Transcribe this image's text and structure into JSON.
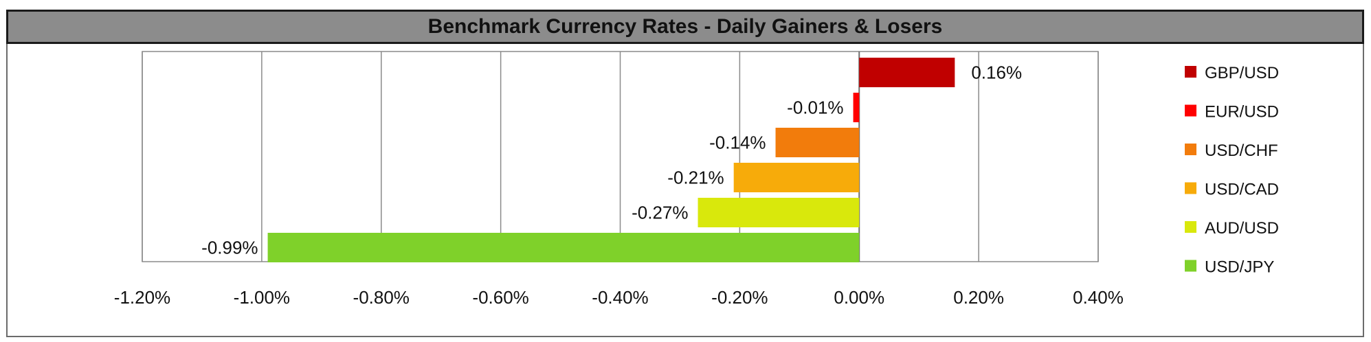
{
  "chart_data": {
    "type": "bar",
    "orientation": "horizontal",
    "title": "Benchmark Currency Rates - Daily Gainers & Losers",
    "categories": [
      "GBP/USD",
      "EUR/USD",
      "USD/CHF",
      "USD/CAD",
      "AUD/USD",
      "USD/JPY"
    ],
    "values": [
      0.16,
      -0.01,
      -0.14,
      -0.21,
      -0.27,
      -0.99
    ],
    "data_labels": [
      "0.16%",
      "-0.01%",
      "-0.14%",
      "-0.21%",
      "-0.27%",
      "-0.99%"
    ],
    "colors": [
      "#c00000",
      "#ff0000",
      "#f27c0c",
      "#f7ab0a",
      "#d9e80c",
      "#7fd12a"
    ],
    "xlim": [
      -1.2,
      0.4
    ],
    "x_ticks": [
      -1.2,
      -1.0,
      -0.8,
      -0.6,
      -0.4,
      -0.2,
      0.0,
      0.2,
      0.4
    ],
    "x_tick_labels": [
      "-1.20%",
      "-1.00%",
      "-0.80%",
      "-0.60%",
      "-0.40%",
      "-0.20%",
      "0.00%",
      "0.20%",
      "0.40%"
    ],
    "grid": "vertical",
    "legend": {
      "placement": "right",
      "entries": [
        "GBP/USD",
        "EUR/USD",
        "USD/CHF",
        "USD/CAD",
        "AUD/USD",
        "USD/JPY"
      ]
    }
  }
}
